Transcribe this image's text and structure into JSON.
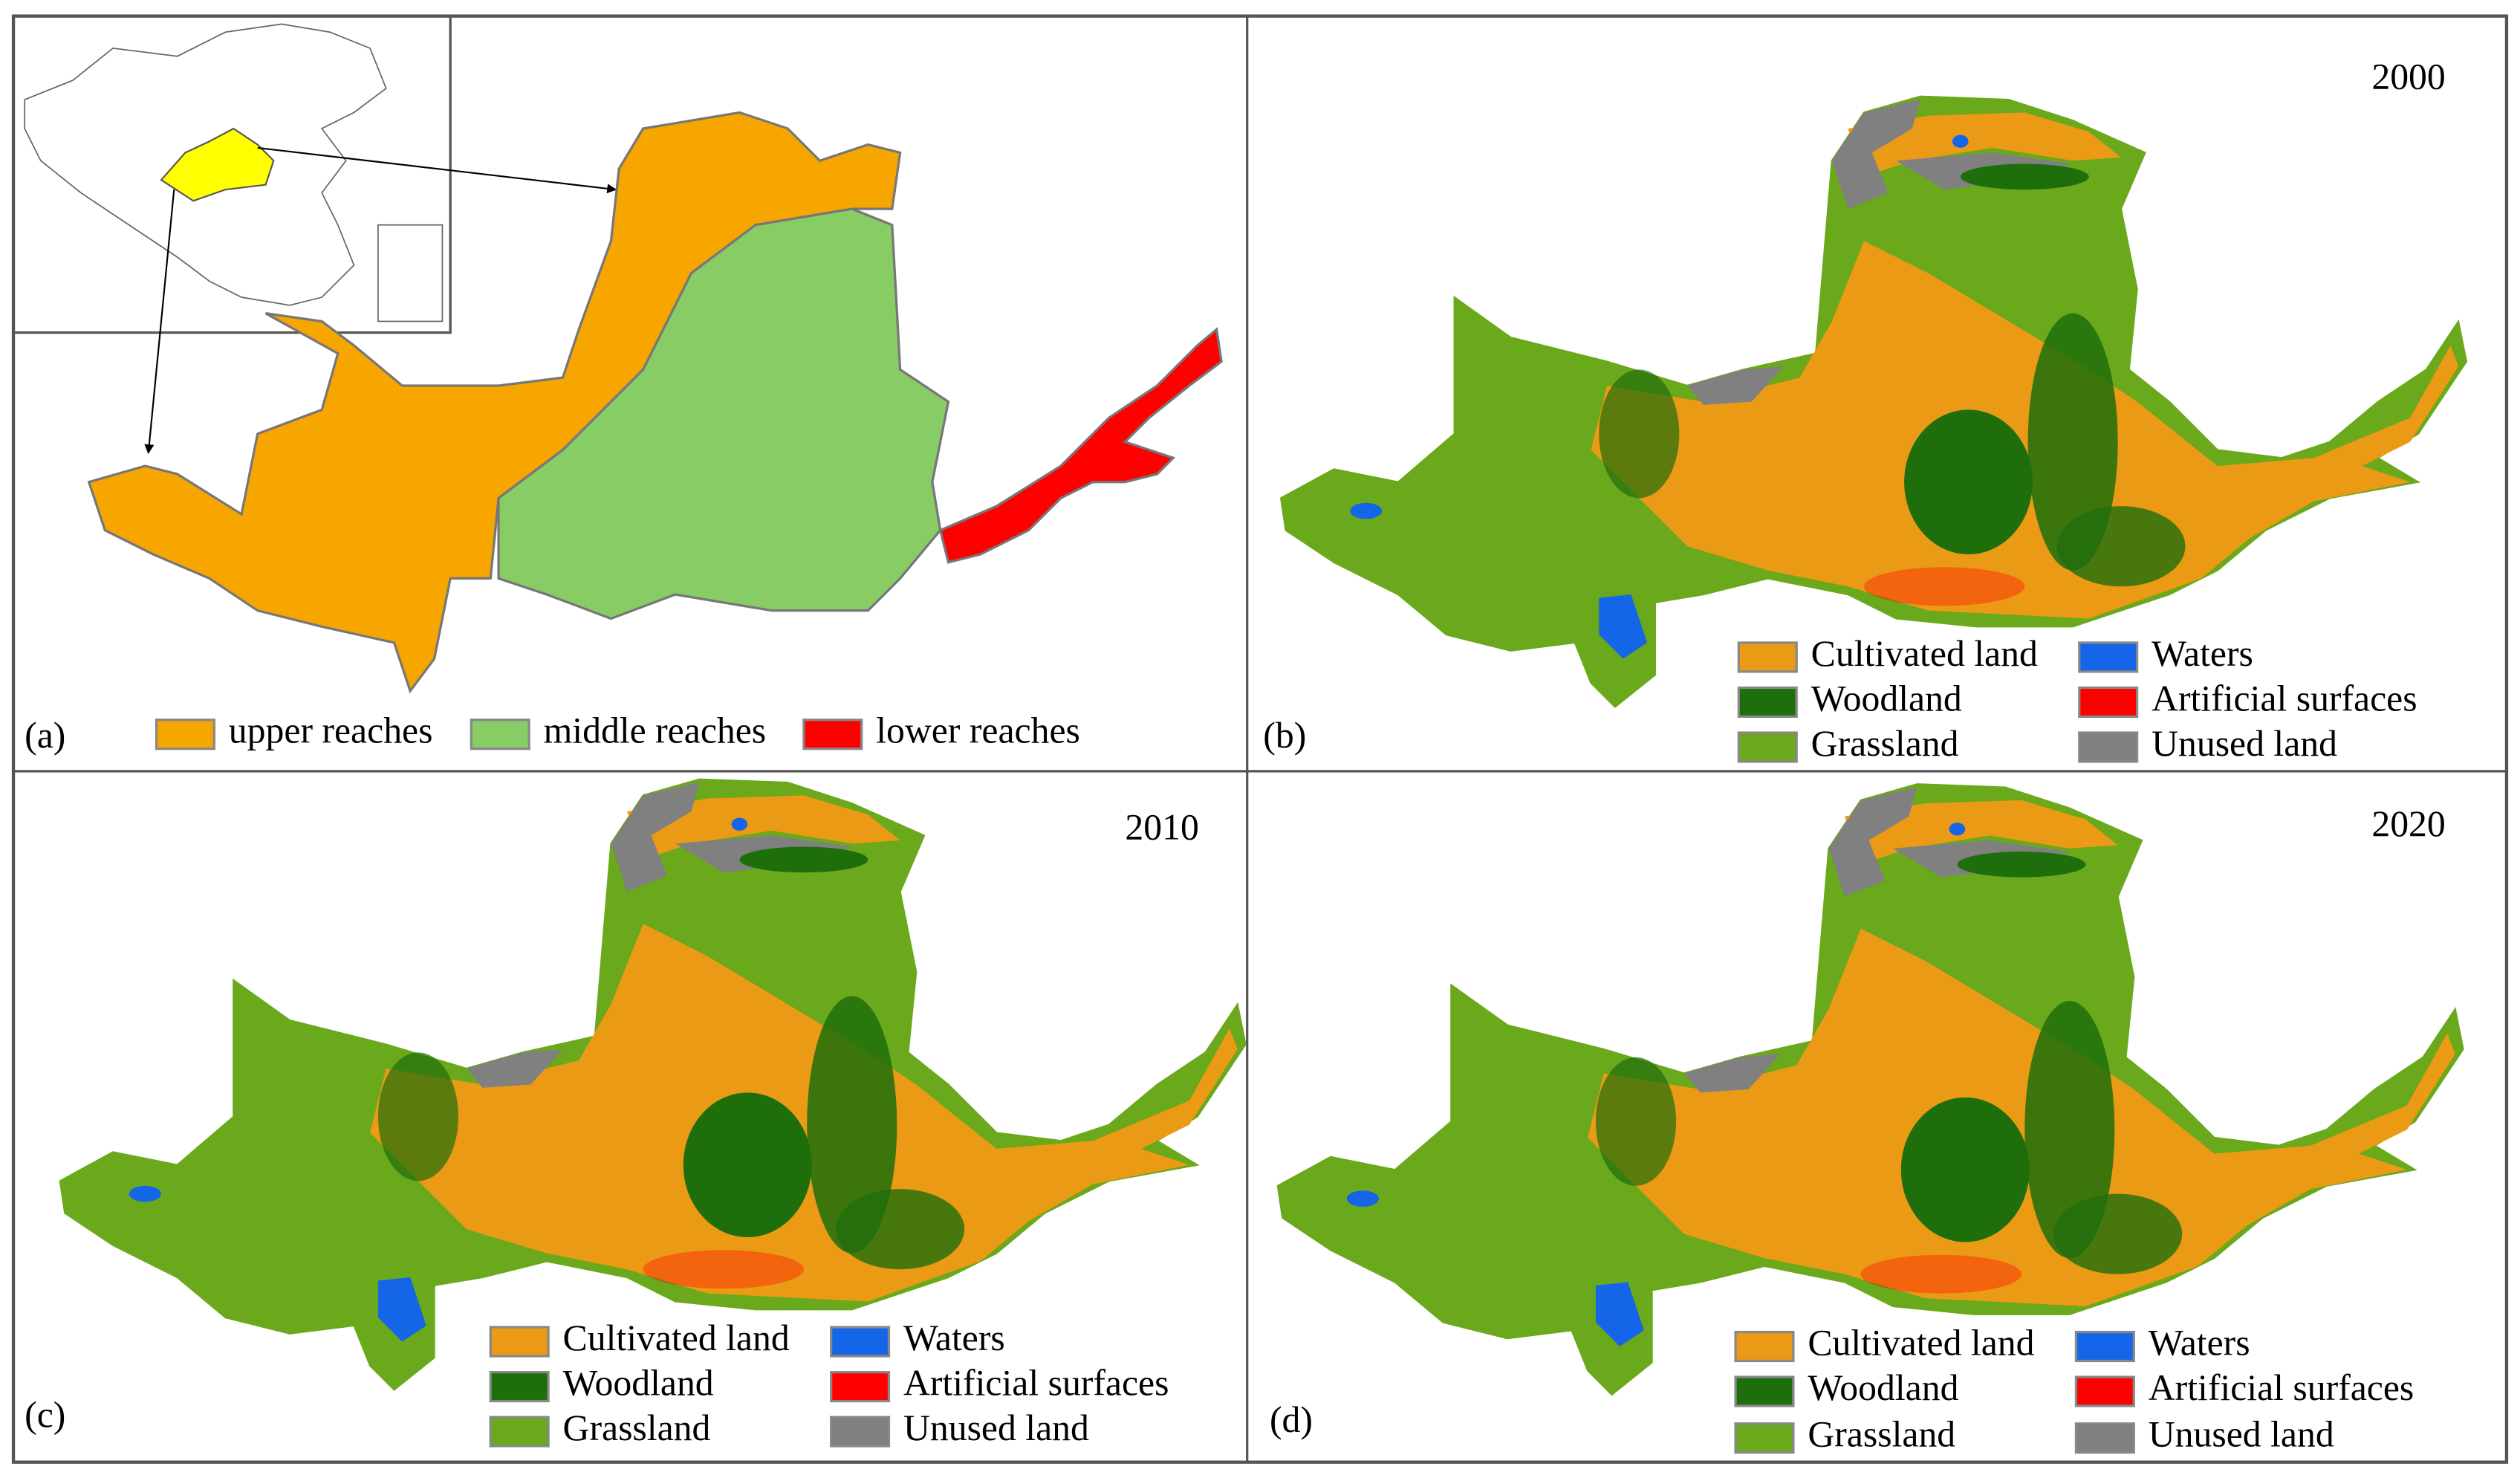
{
  "panels": [
    {
      "label": "(a)",
      "legend": [
        {
          "name": "upper reaches",
          "color": "#f7a600"
        },
        {
          "name": "middle reaches",
          "color": "#88cc66"
        },
        {
          "name": "lower reaches",
          "color": "#ff0000"
        }
      ]
    },
    {
      "label": "(b)",
      "year": "2000",
      "legend": [
        {
          "name": "Cultivated land",
          "color": "#eb9a16"
        },
        {
          "name": "Woodland",
          "color": "#1f6e0c"
        },
        {
          "name": "Grassland",
          "color": "#6aa81c"
        },
        {
          "name": "Waters",
          "color": "#1565e8"
        },
        {
          "name": "Artificial surfaces",
          "color": "#ff0000"
        },
        {
          "name": "Unused land",
          "color": "#808080"
        }
      ]
    },
    {
      "label": "(c)",
      "year": "2010",
      "legend": [
        {
          "name": "Cultivated land",
          "color": "#eb9a16"
        },
        {
          "name": "Woodland",
          "color": "#1f6e0c"
        },
        {
          "name": "Grassland",
          "color": "#6aa81c"
        },
        {
          "name": "Waters",
          "color": "#1565e8"
        },
        {
          "name": "Artificial surfaces",
          "color": "#ff0000"
        },
        {
          "name": "Unused land",
          "color": "#808080"
        }
      ]
    },
    {
      "label": "(d)",
      "year": "2020",
      "legend": [
        {
          "name": "Cultivated land",
          "color": "#eb9a16"
        },
        {
          "name": "Woodland",
          "color": "#1f6e0c"
        },
        {
          "name": "Grassland",
          "color": "#6aa81c"
        },
        {
          "name": "Waters",
          "color": "#1565e8"
        },
        {
          "name": "Artificial surfaces",
          "color": "#ff0000"
        },
        {
          "name": "Unused land",
          "color": "#808080"
        }
      ]
    }
  ]
}
